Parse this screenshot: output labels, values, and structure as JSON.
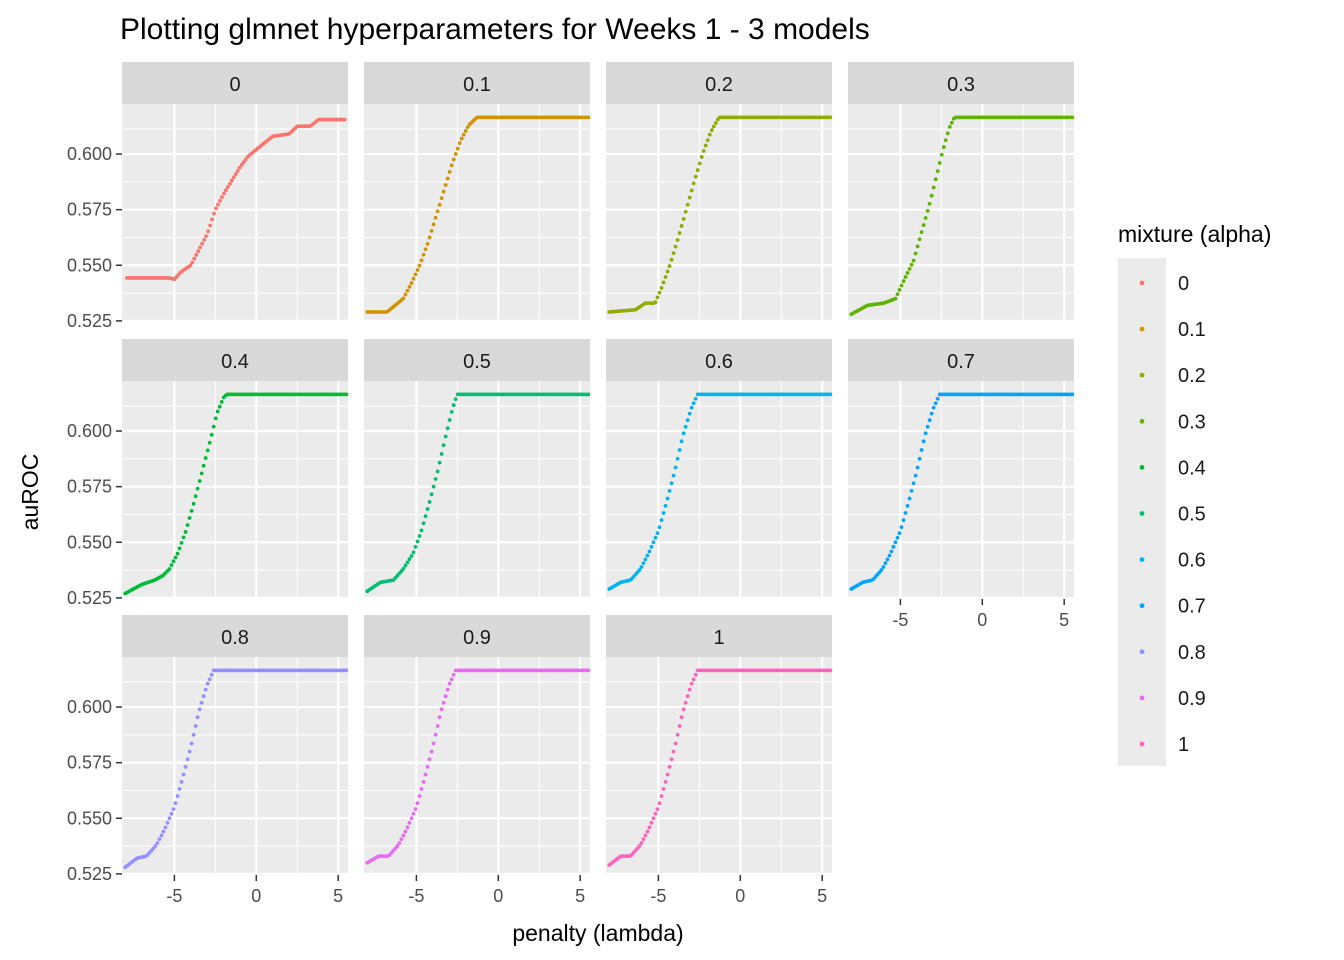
{
  "chart_data": {
    "type": "scatter",
    "title": "Plotting glmnet hyperparameters for Weeks 1 - 3 models",
    "xlabel": "penalty (lambda)",
    "ylabel": "auROC",
    "xlim": [
      -8.2,
      5.6
    ],
    "ylim": [
      0.5245,
      0.6225
    ],
    "x_ticks": [
      -5,
      0,
      5
    ],
    "x_tick_labels": [
      "-5",
      "0",
      "5"
    ],
    "y_ticks": [
      0.525,
      0.55,
      0.575,
      0.6
    ],
    "y_tick_labels": [
      "0.525",
      "0.550",
      "0.575",
      "0.600"
    ],
    "grid": true,
    "legend": {
      "title": "mixture (alpha)",
      "position": "right"
    },
    "facet_by": "mixture (alpha)",
    "series": [
      {
        "name": "0",
        "color": "#F8766D",
        "points": [
          [
            -7.9,
            0.5443
          ],
          [
            -5.3,
            0.5443
          ],
          [
            -5.0,
            0.5437
          ],
          [
            -4.6,
            0.547
          ],
          [
            -4.0,
            0.55
          ],
          [
            -3.5,
            0.557
          ],
          [
            -3.0,
            0.564
          ],
          [
            -2.5,
            0.575
          ],
          [
            -2.0,
            0.582
          ],
          [
            -1.5,
            0.588
          ],
          [
            -1.0,
            0.594
          ],
          [
            -0.5,
            0.599
          ],
          [
            0.0,
            0.602
          ],
          [
            0.5,
            0.605
          ],
          [
            1.0,
            0.608
          ],
          [
            2.0,
            0.609
          ],
          [
            2.5,
            0.6125
          ],
          [
            3.3,
            0.6125
          ],
          [
            3.8,
            0.6155
          ],
          [
            5.4,
            0.6155
          ]
        ]
      },
      {
        "name": "0.1",
        "color": "#D39200",
        "points": [
          [
            -8.0,
            0.529
          ],
          [
            -6.8,
            0.529
          ],
          [
            -6.3,
            0.532
          ],
          [
            -5.8,
            0.535
          ],
          [
            -5.3,
            0.542
          ],
          [
            -4.8,
            0.55
          ],
          [
            -4.3,
            0.56
          ],
          [
            -3.8,
            0.572
          ],
          [
            -3.3,
            0.584
          ],
          [
            -2.8,
            0.596
          ],
          [
            -2.3,
            0.606
          ],
          [
            -1.8,
            0.613
          ],
          [
            -1.3,
            0.6165
          ],
          [
            5.5,
            0.6165
          ]
        ]
      },
      {
        "name": "0.2",
        "color": "#93AA00",
        "points": [
          [
            -8.0,
            0.529
          ],
          [
            -6.4,
            0.53
          ],
          [
            -5.8,
            0.533
          ],
          [
            -5.2,
            0.533
          ],
          [
            -4.8,
            0.54
          ],
          [
            -4.3,
            0.55
          ],
          [
            -3.8,
            0.562
          ],
          [
            -3.3,
            0.575
          ],
          [
            -2.8,
            0.588
          ],
          [
            -2.3,
            0.6
          ],
          [
            -1.8,
            0.61
          ],
          [
            -1.3,
            0.6165
          ],
          [
            5.5,
            0.6165
          ]
        ]
      },
      {
        "name": "0.3",
        "color": "#5EB300",
        "points": [
          [
            -8.0,
            0.528
          ],
          [
            -7.0,
            0.532
          ],
          [
            -6.0,
            0.533
          ],
          [
            -5.3,
            0.535
          ],
          [
            -4.8,
            0.543
          ],
          [
            -4.2,
            0.552
          ],
          [
            -3.7,
            0.565
          ],
          [
            -3.2,
            0.578
          ],
          [
            -2.8,
            0.59
          ],
          [
            -2.4,
            0.602
          ],
          [
            -2.0,
            0.612
          ],
          [
            -1.7,
            0.6165
          ],
          [
            5.5,
            0.6165
          ]
        ]
      },
      {
        "name": "0.4",
        "color": "#00BA38",
        "points": [
          [
            -8.0,
            0.527
          ],
          [
            -7.0,
            0.531
          ],
          [
            -6.2,
            0.533
          ],
          [
            -5.7,
            0.535
          ],
          [
            -5.3,
            0.538
          ],
          [
            -4.8,
            0.545
          ],
          [
            -4.3,
            0.555
          ],
          [
            -3.8,
            0.568
          ],
          [
            -3.3,
            0.582
          ],
          [
            -2.8,
            0.596
          ],
          [
            -2.4,
            0.608
          ],
          [
            -2.0,
            0.615
          ],
          [
            -1.8,
            0.6165
          ],
          [
            5.5,
            0.6165
          ]
        ]
      },
      {
        "name": "0.5",
        "color": "#00BF74",
        "points": [
          [
            -8.0,
            0.528
          ],
          [
            -7.2,
            0.532
          ],
          [
            -6.4,
            0.533
          ],
          [
            -5.8,
            0.538
          ],
          [
            -5.2,
            0.545
          ],
          [
            -4.7,
            0.555
          ],
          [
            -4.2,
            0.568
          ],
          [
            -3.7,
            0.582
          ],
          [
            -3.2,
            0.598
          ],
          [
            -2.8,
            0.61
          ],
          [
            -2.5,
            0.6165
          ],
          [
            5.5,
            0.6165
          ]
        ]
      },
      {
        "name": "0.6",
        "color": "#00B4EF",
        "points": [
          [
            -8.0,
            0.529
          ],
          [
            -7.3,
            0.532
          ],
          [
            -6.7,
            0.533
          ],
          [
            -6.1,
            0.538
          ],
          [
            -5.6,
            0.545
          ],
          [
            -5.0,
            0.555
          ],
          [
            -4.5,
            0.568
          ],
          [
            -4.0,
            0.582
          ],
          [
            -3.5,
            0.598
          ],
          [
            -3.0,
            0.61
          ],
          [
            -2.6,
            0.6165
          ],
          [
            5.5,
            0.6165
          ]
        ]
      },
      {
        "name": "0.7",
        "color": "#00A5FF",
        "points": [
          [
            -8.0,
            0.529
          ],
          [
            -7.3,
            0.532
          ],
          [
            -6.7,
            0.533
          ],
          [
            -6.1,
            0.538
          ],
          [
            -5.6,
            0.545
          ],
          [
            -5.0,
            0.555
          ],
          [
            -4.5,
            0.568
          ],
          [
            -4.0,
            0.582
          ],
          [
            -3.5,
            0.598
          ],
          [
            -3.0,
            0.61
          ],
          [
            -2.6,
            0.6165
          ],
          [
            5.5,
            0.6165
          ]
        ]
      },
      {
        "name": "0.8",
        "color": "#9590FF",
        "points": [
          [
            -8.0,
            0.528
          ],
          [
            -7.3,
            0.532
          ],
          [
            -6.7,
            0.533
          ],
          [
            -6.1,
            0.538
          ],
          [
            -5.6,
            0.545
          ],
          [
            -5.0,
            0.555
          ],
          [
            -4.5,
            0.568
          ],
          [
            -4.0,
            0.582
          ],
          [
            -3.5,
            0.598
          ],
          [
            -3.0,
            0.61
          ],
          [
            -2.6,
            0.6165
          ],
          [
            5.5,
            0.6165
          ]
        ]
      },
      {
        "name": "0.9",
        "color": "#E76BF3",
        "points": [
          [
            -8.0,
            0.53
          ],
          [
            -7.3,
            0.533
          ],
          [
            -6.7,
            0.533
          ],
          [
            -6.1,
            0.538
          ],
          [
            -5.6,
            0.545
          ],
          [
            -5.0,
            0.555
          ],
          [
            -4.5,
            0.568
          ],
          [
            -4.0,
            0.582
          ],
          [
            -3.5,
            0.598
          ],
          [
            -3.0,
            0.61
          ],
          [
            -2.6,
            0.6165
          ],
          [
            5.5,
            0.6165
          ]
        ]
      },
      {
        "name": "1",
        "color": "#FF62BC",
        "points": [
          [
            -8.0,
            0.529
          ],
          [
            -7.3,
            0.533
          ],
          [
            -6.7,
            0.533
          ],
          [
            -6.1,
            0.538
          ],
          [
            -5.6,
            0.545
          ],
          [
            -5.0,
            0.555
          ],
          [
            -4.5,
            0.568
          ],
          [
            -4.0,
            0.582
          ],
          [
            -3.5,
            0.598
          ],
          [
            -3.0,
            0.61
          ],
          [
            -2.6,
            0.6165
          ],
          [
            5.5,
            0.6165
          ]
        ]
      }
    ]
  }
}
